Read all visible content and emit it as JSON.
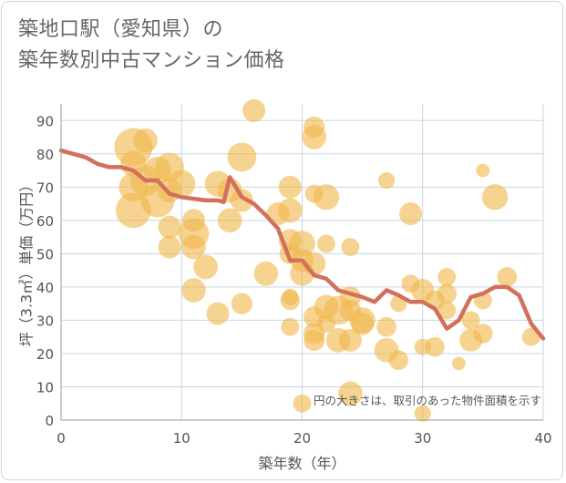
{
  "title": {
    "line1": "築地口駅（愛知県）の",
    "line2": "築年数別中古マンション価格"
  },
  "colors": {
    "bubble": "#f0b84e",
    "line": "#d2705c",
    "grid": "#c9d5e3",
    "text": "#555555"
  },
  "chart_data": {
    "type": "scatter",
    "xlabel": "築年数（年）",
    "ylabel": "坪（3.3㎡）単価（万円）",
    "xlim": [
      0,
      40
    ],
    "ylim": [
      0,
      95
    ],
    "x_ticks": [
      0,
      10,
      20,
      30,
      40
    ],
    "y_ticks": [
      0,
      10,
      20,
      30,
      40,
      50,
      60,
      70,
      80,
      90
    ],
    "annotation": "円の大きさは、取引のあった物件面積を示す",
    "series": [
      {
        "type": "line",
        "values": [
          {
            "x": 0,
            "y": 81
          },
          {
            "x": 1,
            "y": 80
          },
          {
            "x": 2,
            "y": 79
          },
          {
            "x": 3,
            "y": 77
          },
          {
            "x": 4,
            "y": 76
          },
          {
            "x": 5,
            "y": 76
          },
          {
            "x": 6,
            "y": 75
          },
          {
            "x": 7,
            "y": 72
          },
          {
            "x": 8,
            "y": 72
          },
          {
            "x": 9,
            "y": 68
          },
          {
            "x": 10,
            "y": 67
          },
          {
            "x": 11,
            "y": 66.5
          },
          {
            "x": 12,
            "y": 66
          },
          {
            "x": 13,
            "y": 66
          },
          {
            "x": 13.5,
            "y": 65.5
          },
          {
            "x": 14,
            "y": 73
          },
          {
            "x": 15,
            "y": 67
          },
          {
            "x": 16,
            "y": 65
          },
          {
            "x": 17,
            "y": 61.5
          },
          {
            "x": 18,
            "y": 57.5
          },
          {
            "x": 19,
            "y": 48
          },
          {
            "x": 20,
            "y": 48
          },
          {
            "x": 21,
            "y": 43.5
          },
          {
            "x": 22,
            "y": 42.5
          },
          {
            "x": 23,
            "y": 39
          },
          {
            "x": 24,
            "y": 38
          },
          {
            "x": 25,
            "y": 37
          },
          {
            "x": 26,
            "y": 35.5
          },
          {
            "x": 27,
            "y": 39
          },
          {
            "x": 28,
            "y": 37.5
          },
          {
            "x": 29,
            "y": 35.5
          },
          {
            "x": 30,
            "y": 35.5
          },
          {
            "x": 31,
            "y": 33.5
          },
          {
            "x": 32,
            "y": 27.5
          },
          {
            "x": 33,
            "y": 30
          },
          {
            "x": 34,
            "y": 37
          },
          {
            "x": 35,
            "y": 38
          },
          {
            "x": 36,
            "y": 40
          },
          {
            "x": 37,
            "y": 40
          },
          {
            "x": 38,
            "y": 37.5
          },
          {
            "x": 39,
            "y": 29
          },
          {
            "x": 40,
            "y": 24.5
          }
        ]
      },
      {
        "type": "bubble",
        "values": [
          {
            "x": 6,
            "y": 82,
            "size": 1.0
          },
          {
            "x": 7,
            "y": 84,
            "size": 0.55
          },
          {
            "x": 6,
            "y": 77,
            "size": 0.6
          },
          {
            "x": 8,
            "y": 75,
            "size": 0.65
          },
          {
            "x": 9,
            "y": 76,
            "size": 0.7
          },
          {
            "x": 6,
            "y": 70,
            "size": 0.7
          },
          {
            "x": 7,
            "y": 72,
            "size": 0.75
          },
          {
            "x": 8,
            "y": 66,
            "size": 0.85
          },
          {
            "x": 6,
            "y": 63,
            "size": 0.9
          },
          {
            "x": 10,
            "y": 71,
            "size": 0.65
          },
          {
            "x": 9,
            "y": 69,
            "size": 0.55
          },
          {
            "x": 9,
            "y": 58,
            "size": 0.5
          },
          {
            "x": 9,
            "y": 52,
            "size": 0.5
          },
          {
            "x": 11,
            "y": 60,
            "size": 0.5
          },
          {
            "x": 11,
            "y": 56,
            "size": 0.75
          },
          {
            "x": 11,
            "y": 52,
            "size": 0.55
          },
          {
            "x": 12,
            "y": 46,
            "size": 0.55
          },
          {
            "x": 11,
            "y": 39,
            "size": 0.55
          },
          {
            "x": 13,
            "y": 32,
            "size": 0.5
          },
          {
            "x": 13,
            "y": 71,
            "size": 0.6
          },
          {
            "x": 14,
            "y": 69,
            "size": 0.55
          },
          {
            "x": 15,
            "y": 66,
            "size": 0.5
          },
          {
            "x": 14,
            "y": 60,
            "size": 0.55
          },
          {
            "x": 15,
            "y": 79,
            "size": 0.7
          },
          {
            "x": 16,
            "y": 93,
            "size": 0.5
          },
          {
            "x": 17,
            "y": 44,
            "size": 0.55
          },
          {
            "x": 15,
            "y": 35,
            "size": 0.45
          },
          {
            "x": 18,
            "y": 62,
            "size": 0.5
          },
          {
            "x": 19,
            "y": 70,
            "size": 0.5
          },
          {
            "x": 19,
            "y": 63,
            "size": 0.55
          },
          {
            "x": 19,
            "y": 54,
            "size": 0.5
          },
          {
            "x": 19,
            "y": 50,
            "size": 0.45
          },
          {
            "x": 20,
            "y": 53,
            "size": 0.6
          },
          {
            "x": 20,
            "y": 48,
            "size": 0.5
          },
          {
            "x": 20,
            "y": 44,
            "size": 0.55
          },
          {
            "x": 21,
            "y": 88,
            "size": 0.45
          },
          {
            "x": 21,
            "y": 85,
            "size": 0.55
          },
          {
            "x": 21,
            "y": 68,
            "size": 0.35
          },
          {
            "x": 22,
            "y": 67,
            "size": 0.6
          },
          {
            "x": 19,
            "y": 37,
            "size": 0.3
          },
          {
            "x": 19,
            "y": 36,
            "size": 0.4
          },
          {
            "x": 19,
            "y": 28,
            "size": 0.35
          },
          {
            "x": 21,
            "y": 47,
            "size": 0.5
          },
          {
            "x": 22,
            "y": 53,
            "size": 0.35
          },
          {
            "x": 21,
            "y": 31,
            "size": 0.45
          },
          {
            "x": 21,
            "y": 26,
            "size": 0.45
          },
          {
            "x": 21,
            "y": 24,
            "size": 0.45
          },
          {
            "x": 22,
            "y": 34,
            "size": 0.55
          },
          {
            "x": 22,
            "y": 29,
            "size": 0.35
          },
          {
            "x": 23,
            "y": 33,
            "size": 0.7
          },
          {
            "x": 23,
            "y": 24,
            "size": 0.55
          },
          {
            "x": 24,
            "y": 37,
            "size": 0.45
          },
          {
            "x": 24,
            "y": 33,
            "size": 0.45
          },
          {
            "x": 24,
            "y": 24,
            "size": 0.5
          },
          {
            "x": 24,
            "y": 52,
            "size": 0.35
          },
          {
            "x": 25,
            "y": 30,
            "size": 0.6
          },
          {
            "x": 25,
            "y": 29,
            "size": 0.5
          },
          {
            "x": 24,
            "y": 8,
            "size": 0.55
          },
          {
            "x": 20,
            "y": 5,
            "size": 0.35
          },
          {
            "x": 27,
            "y": 72,
            "size": 0.3
          },
          {
            "x": 27,
            "y": 28,
            "size": 0.4
          },
          {
            "x": 27,
            "y": 21,
            "size": 0.55
          },
          {
            "x": 28,
            "y": 18,
            "size": 0.4
          },
          {
            "x": 28,
            "y": 35,
            "size": 0.3
          },
          {
            "x": 29,
            "y": 62,
            "size": 0.5
          },
          {
            "x": 29,
            "y": 41,
            "size": 0.35
          },
          {
            "x": 30,
            "y": 39,
            "size": 0.5
          },
          {
            "x": 30,
            "y": 22,
            "size": 0.3
          },
          {
            "x": 30,
            "y": 2,
            "size": 0.3
          },
          {
            "x": 31,
            "y": 36,
            "size": 0.4
          },
          {
            "x": 31,
            "y": 22,
            "size": 0.4
          },
          {
            "x": 32,
            "y": 43,
            "size": 0.35
          },
          {
            "x": 32,
            "y": 38,
            "size": 0.4
          },
          {
            "x": 32,
            "y": 33,
            "size": 0.35
          },
          {
            "x": 33,
            "y": 17,
            "size": 0.2
          },
          {
            "x": 34,
            "y": 30,
            "size": 0.35
          },
          {
            "x": 34,
            "y": 24,
            "size": 0.5
          },
          {
            "x": 35,
            "y": 75,
            "size": 0.2
          },
          {
            "x": 35,
            "y": 36,
            "size": 0.35
          },
          {
            "x": 35,
            "y": 26,
            "size": 0.4
          },
          {
            "x": 36,
            "y": 67,
            "size": 0.6
          },
          {
            "x": 37,
            "y": 43,
            "size": 0.4
          },
          {
            "x": 39,
            "y": 25,
            "size": 0.35
          }
        ]
      }
    ]
  }
}
